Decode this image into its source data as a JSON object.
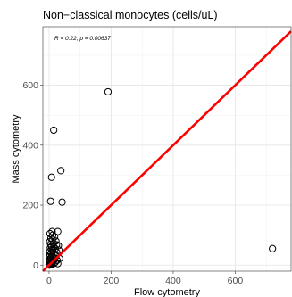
{
  "chart_data": {
    "type": "scatter",
    "title": "Non−classical monocytes (cells/uL)",
    "xlabel": "Flow cytometry",
    "ylabel": "Mass cytometry",
    "xlim": [
      -20,
      780
    ],
    "ylim": [
      -20,
      795
    ],
    "xticks": [
      0,
      200,
      400,
      600
    ],
    "yticks": [
      0,
      200,
      400,
      600
    ],
    "grid": true,
    "annotation": "R = 0.22, p = 0.00637",
    "reference_line": {
      "type": "identity",
      "slope": 1,
      "intercept": 0,
      "color": "#ff0000"
    },
    "marker": {
      "shape": "open-circle",
      "color": "#000000"
    },
    "points": [
      {
        "x": 190,
        "y": 578
      },
      {
        "x": 15,
        "y": 450
      },
      {
        "x": 38,
        "y": 315
      },
      {
        "x": 8,
        "y": 293
      },
      {
        "x": 42,
        "y": 210
      },
      {
        "x": 5,
        "y": 213
      },
      {
        "x": 720,
        "y": 55
      },
      {
        "x": 10,
        "y": 112
      },
      {
        "x": 3,
        "y": 105
      },
      {
        "x": 12,
        "y": 100
      },
      {
        "x": 28,
        "y": 112
      },
      {
        "x": 18,
        "y": 95
      },
      {
        "x": 6,
        "y": 90
      },
      {
        "x": 22,
        "y": 80
      },
      {
        "x": 2,
        "y": 78
      },
      {
        "x": 14,
        "y": 72
      },
      {
        "x": 30,
        "y": 65
      },
      {
        "x": 8,
        "y": 62
      },
      {
        "x": 4,
        "y": 58
      },
      {
        "x": 20,
        "y": 55
      },
      {
        "x": 32,
        "y": 50
      },
      {
        "x": 12,
        "y": 48
      },
      {
        "x": 2,
        "y": 45
      },
      {
        "x": 25,
        "y": 42
      },
      {
        "x": 7,
        "y": 40
      },
      {
        "x": 16,
        "y": 37
      },
      {
        "x": 3,
        "y": 35
      },
      {
        "x": 10,
        "y": 32
      },
      {
        "x": 22,
        "y": 30
      },
      {
        "x": 1,
        "y": 28
      },
      {
        "x": 14,
        "y": 26
      },
      {
        "x": 6,
        "y": 24
      },
      {
        "x": 18,
        "y": 22
      },
      {
        "x": 2,
        "y": 20
      },
      {
        "x": 9,
        "y": 18
      },
      {
        "x": 26,
        "y": 16
      },
      {
        "x": 4,
        "y": 14
      },
      {
        "x": 12,
        "y": 12
      },
      {
        "x": 1,
        "y": 10
      },
      {
        "x": 7,
        "y": 8
      },
      {
        "x": 16,
        "y": 6
      },
      {
        "x": 3,
        "y": 5
      },
      {
        "x": 10,
        "y": 3
      },
      {
        "x": 5,
        "y": 1
      },
      {
        "x": 20,
        "y": 10
      },
      {
        "x": 34,
        "y": 22
      },
      {
        "x": 0,
        "y": 2
      },
      {
        "x": 8,
        "y": 52
      },
      {
        "x": 15,
        "y": 60
      },
      {
        "x": 24,
        "y": 68
      },
      {
        "x": 5,
        "y": 70
      },
      {
        "x": 11,
        "y": 85
      },
      {
        "x": 1,
        "y": 0
      },
      {
        "x": 28,
        "y": 5
      }
    ]
  }
}
